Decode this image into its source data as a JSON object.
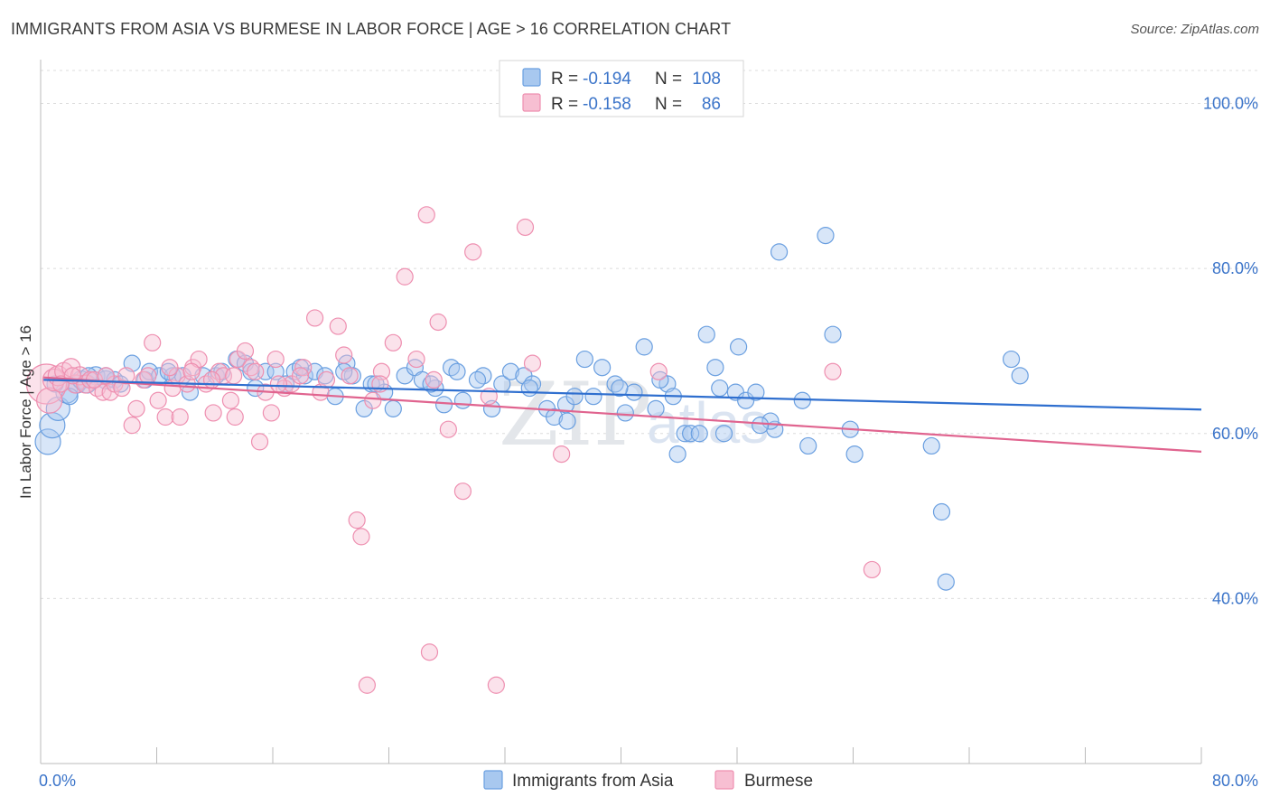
{
  "title": "IMMIGRANTS FROM ASIA VS BURMESE IN LABOR FORCE | AGE > 16 CORRELATION CHART",
  "source": "Source: ZipAtlas.com",
  "watermark": {
    "zip": "ZIP",
    "atlas": "atlas"
  },
  "legend_top": [
    {
      "r_label": "R = ",
      "r_value": "-0.194",
      "n_label": "N = ",
      "n_value": "108",
      "color": "#7aaee8"
    },
    {
      "r_label": "R = ",
      "r_value": "-0.158",
      "n_label": "N = ",
      "n_value": "86",
      "color": "#f3a3bf"
    }
  ],
  "colors": {
    "asia_fill": "#a8c8ef",
    "asia_stroke": "#6a9fe0",
    "asia_line": "#2f6fcf",
    "burmese_fill": "#f7bfd2",
    "burmese_stroke": "#ee8fb0",
    "burmese_line": "#e0648f",
    "tick_text": "#3b74c9",
    "grid": "#dcdcdc"
  },
  "chart_data": {
    "type": "scatter",
    "title": "IMMIGRANTS FROM ASIA VS BURMESE IN LABOR FORCE | AGE > 16 CORRELATION CHART",
    "xlabel": "",
    "ylabel": "In Labor Force | Age > 16",
    "xlim": [
      0,
      80
    ],
    "ylim": [
      20,
      104
    ],
    "x_tick_labels": [
      "0.0%",
      "80.0%"
    ],
    "y_ticks": [
      40,
      60,
      80,
      100
    ],
    "y_tick_labels": [
      "40.0%",
      "60.0%",
      "80.0%",
      "100.0%"
    ],
    "grid": "horizontal dashed",
    "legend_position": "top-center and bottom",
    "series": [
      {
        "name": "Immigrants from Asia",
        "trend": [
          [
            0.2,
            66.5
          ],
          [
            80,
            62.9
          ]
        ],
        "points": [
          [
            0.5,
            59
          ],
          [
            0.8,
            61
          ],
          [
            1.2,
            63
          ],
          [
            1.8,
            65
          ],
          [
            2.5,
            66
          ],
          [
            2.8,
            66.5
          ],
          [
            3.2,
            66
          ],
          [
            3.8,
            67
          ],
          [
            4.5,
            66.5
          ],
          [
            5.1,
            66.5
          ],
          [
            6.3,
            68.5
          ],
          [
            7.2,
            66.5
          ],
          [
            7.5,
            67.5
          ],
          [
            8.2,
            67
          ],
          [
            9.1,
            67
          ],
          [
            9.8,
            67
          ],
          [
            10.3,
            65
          ],
          [
            11.2,
            67
          ],
          [
            12.1,
            67
          ],
          [
            13.5,
            69
          ],
          [
            14.1,
            68.5
          ],
          [
            14.8,
            65.5
          ],
          [
            15.5,
            67.5
          ],
          [
            16.2,
            67.5
          ],
          [
            16.9,
            66
          ],
          [
            17.5,
            67.5
          ],
          [
            18.2,
            67
          ],
          [
            18.9,
            67.5
          ],
          [
            19.6,
            67
          ],
          [
            20.3,
            64.5
          ],
          [
            21.1,
            68.5
          ],
          [
            21.5,
            67
          ],
          [
            22.3,
            63
          ],
          [
            22.8,
            66
          ],
          [
            23.7,
            65
          ],
          [
            24.3,
            63
          ],
          [
            25.1,
            67
          ],
          [
            25.8,
            68
          ],
          [
            26.3,
            66.5
          ],
          [
            27.2,
            65.5
          ],
          [
            27.8,
            63.5
          ],
          [
            28.3,
            68
          ],
          [
            28.7,
            67.5
          ],
          [
            29.1,
            64
          ],
          [
            30.5,
            67
          ],
          [
            31.1,
            63
          ],
          [
            31.8,
            66
          ],
          [
            32.4,
            67.5
          ],
          [
            33.3,
            67
          ],
          [
            33.9,
            66
          ],
          [
            34.9,
            63
          ],
          [
            35.4,
            62
          ],
          [
            36.2,
            63.5
          ],
          [
            36.8,
            64.5
          ],
          [
            37.5,
            69
          ],
          [
            38.1,
            64.5
          ],
          [
            38.7,
            68
          ],
          [
            39.6,
            66
          ],
          [
            40.3,
            62.5
          ],
          [
            40.9,
            65
          ],
          [
            41.6,
            70.5
          ],
          [
            42.4,
            63
          ],
          [
            43.2,
            66
          ],
          [
            43.6,
            64.5
          ],
          [
            43.9,
            57.5
          ],
          [
            44.4,
            60
          ],
          [
            44.8,
            60
          ],
          [
            45.4,
            60
          ],
          [
            45.9,
            72
          ],
          [
            46.8,
            65.5
          ],
          [
            46.5,
            68
          ],
          [
            47.9,
            65
          ],
          [
            48.1,
            70.5
          ],
          [
            48.6,
            64
          ],
          [
            49.3,
            65
          ],
          [
            50.6,
            60.5
          ],
          [
            50.3,
            61.5
          ],
          [
            50.9,
            82
          ],
          [
            52.5,
            64
          ],
          [
            52.9,
            58.5
          ],
          [
            54.1,
            84
          ],
          [
            54.6,
            72
          ],
          [
            55.8,
            60.5
          ],
          [
            56.1,
            57.5
          ],
          [
            61.4,
            58.5
          ],
          [
            62.1,
            50.5
          ],
          [
            62.4,
            42
          ],
          [
            66.9,
            69
          ],
          [
            67.5,
            67
          ],
          [
            3.3,
            67
          ],
          [
            5.5,
            66
          ],
          [
            8.8,
            67.5
          ],
          [
            12.5,
            67.5
          ],
          [
            14.5,
            67.5
          ],
          [
            17.9,
            68
          ],
          [
            20.9,
            67.5
          ],
          [
            23.1,
            66
          ],
          [
            26.9,
            66
          ],
          [
            30.1,
            66.5
          ],
          [
            33.7,
            65.5
          ],
          [
            36.3,
            61.5
          ],
          [
            39.9,
            65.5
          ],
          [
            42.7,
            66.5
          ],
          [
            47.1,
            60
          ],
          [
            49.6,
            61
          ],
          [
            1,
            66
          ],
          [
            2,
            64.5
          ],
          [
            4.5,
            67
          ]
        ],
        "sizes": [
          14,
          14,
          13,
          12,
          10,
          10,
          10,
          10,
          10,
          9,
          9,
          9,
          9,
          9,
          9,
          9,
          9,
          9,
          9,
          9,
          9,
          9,
          9,
          9,
          9,
          9,
          9,
          9,
          9,
          9,
          9,
          9,
          9,
          9,
          9,
          9,
          9,
          9,
          9,
          9,
          9,
          9,
          9,
          9,
          9,
          9,
          9,
          9,
          9,
          9,
          9,
          9,
          9,
          9,
          9,
          9,
          9,
          9,
          9,
          9,
          9,
          9,
          9,
          9,
          9,
          9,
          9,
          9,
          9,
          9,
          9,
          9,
          9,
          9,
          9,
          9,
          9,
          9,
          9,
          9,
          9,
          9,
          9,
          9,
          9,
          9,
          9,
          9,
          9,
          9,
          9,
          9,
          9,
          9,
          9,
          9,
          9,
          9,
          9,
          9,
          9,
          9,
          9,
          9,
          9,
          9,
          9,
          9
        ]
      },
      {
        "name": "Burmese",
        "trend": [
          [
            0.2,
            66.8
          ],
          [
            80,
            57.8
          ]
        ],
        "points": [
          [
            0.4,
            66
          ],
          [
            0.6,
            64
          ],
          [
            0.9,
            66.5
          ],
          [
            1.2,
            67
          ],
          [
            1.6,
            67.5
          ],
          [
            2.1,
            68
          ],
          [
            2.4,
            66
          ],
          [
            2.7,
            67
          ],
          [
            3.1,
            66
          ],
          [
            3.4,
            66.5
          ],
          [
            3.9,
            65.5
          ],
          [
            4.3,
            65
          ],
          [
            4.8,
            65
          ],
          [
            5.1,
            66
          ],
          [
            5.6,
            65.5
          ],
          [
            6.3,
            61
          ],
          [
            6.6,
            63
          ],
          [
            7.1,
            66.5
          ],
          [
            7.7,
            71
          ],
          [
            8.1,
            64
          ],
          [
            8.6,
            62
          ],
          [
            9.1,
            65.5
          ],
          [
            9.4,
            67
          ],
          [
            9.6,
            62
          ],
          [
            10.1,
            66
          ],
          [
            10.5,
            68
          ],
          [
            10.9,
            69
          ],
          [
            11.4,
            66
          ],
          [
            11.9,
            62.5
          ],
          [
            12.3,
            67.5
          ],
          [
            12.6,
            67
          ],
          [
            13.1,
            64
          ],
          [
            13.4,
            62
          ],
          [
            13.6,
            69
          ],
          [
            14.1,
            70
          ],
          [
            14.5,
            68
          ],
          [
            15.1,
            59
          ],
          [
            15.5,
            65
          ],
          [
            15.9,
            62.5
          ],
          [
            16.2,
            69
          ],
          [
            16.8,
            65.5
          ],
          [
            17.3,
            66
          ],
          [
            18.1,
            68
          ],
          [
            18.9,
            74
          ],
          [
            19.3,
            65
          ],
          [
            20.5,
            73
          ],
          [
            20.9,
            69.5
          ],
          [
            21.8,
            49.5
          ],
          [
            22.1,
            47.5
          ],
          [
            22.9,
            64
          ],
          [
            23.5,
            67.5
          ],
          [
            24.3,
            71
          ],
          [
            25.1,
            79
          ],
          [
            25.9,
            69
          ],
          [
            26.6,
            86.5
          ],
          [
            27.4,
            73.5
          ],
          [
            28.1,
            60.5
          ],
          [
            29.1,
            53
          ],
          [
            29.8,
            82
          ],
          [
            30.9,
            64.5
          ],
          [
            31.4,
            29.5
          ],
          [
            33.4,
            85
          ],
          [
            33.9,
            68.5
          ],
          [
            35.9,
            57.5
          ],
          [
            42.6,
            67.5
          ],
          [
            54.6,
            67.5
          ],
          [
            57.3,
            43.5
          ],
          [
            22.5,
            29.5
          ],
          [
            26.8,
            33.5
          ],
          [
            1.4,
            66
          ],
          [
            2.2,
            67
          ],
          [
            3.7,
            66.5
          ],
          [
            4.5,
            67
          ],
          [
            5.9,
            67
          ],
          [
            7.4,
            67
          ],
          [
            8.9,
            68
          ],
          [
            10.4,
            67.5
          ],
          [
            11.8,
            66.5
          ],
          [
            13.3,
            67
          ],
          [
            14.8,
            67.5
          ],
          [
            16.4,
            66
          ],
          [
            17.9,
            67
          ],
          [
            19.7,
            66.5
          ],
          [
            21.3,
            67
          ],
          [
            23.4,
            66
          ],
          [
            27.1,
            66.5
          ]
        ],
        "sizes": [
          22,
          14,
          12,
          11,
          10,
          10,
          10,
          10,
          10,
          9,
          9,
          9,
          9,
          9,
          9,
          9,
          9,
          9,
          9,
          9,
          9,
          9,
          9,
          9,
          9,
          9,
          9,
          9,
          9,
          9,
          9,
          9,
          9,
          9,
          9,
          9,
          9,
          9,
          9,
          9,
          9,
          9,
          9,
          9,
          9,
          9,
          9,
          9,
          9,
          9,
          9,
          9,
          9,
          9,
          9,
          9,
          9,
          9,
          9,
          9,
          9,
          9,
          9,
          9,
          9,
          9,
          9,
          9,
          9,
          9,
          9,
          9,
          9,
          9,
          9,
          9,
          9,
          9,
          9,
          9,
          9,
          9,
          9,
          9,
          9,
          9
        ]
      }
    ]
  }
}
